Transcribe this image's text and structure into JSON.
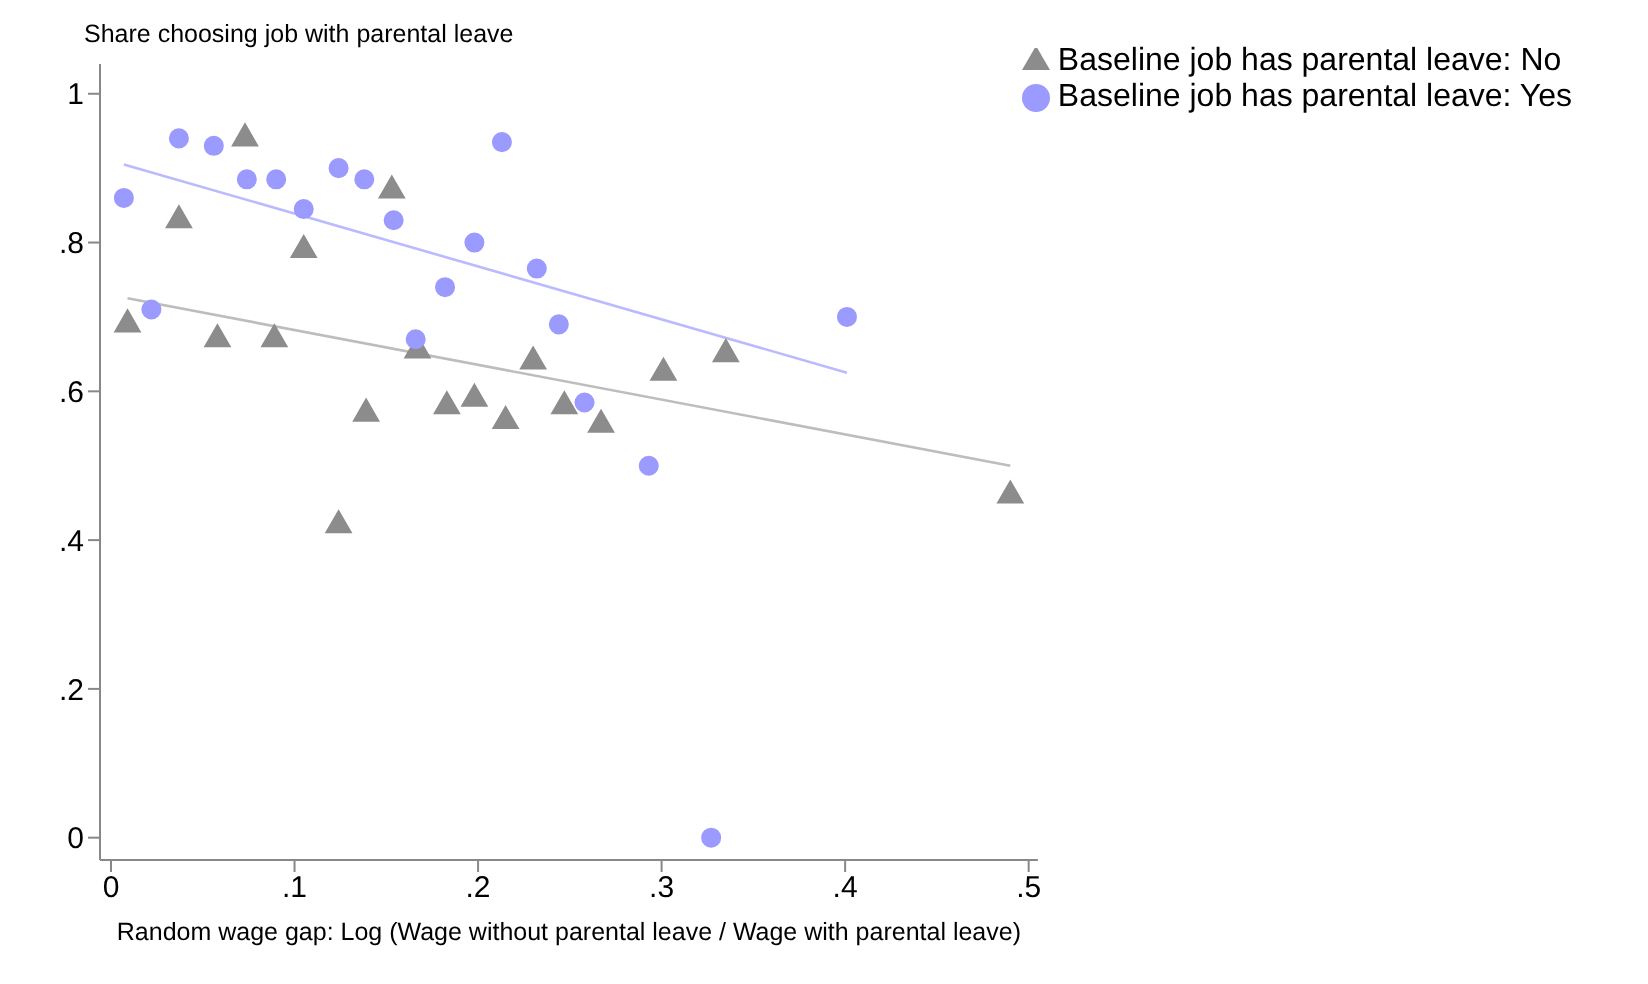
{
  "chart_data": {
    "type": "scatter",
    "ylabel": "Share choosing job with parental leave",
    "xlabel": "Random wage gap: Log (Wage without parental leave / Wage with parental leave)",
    "xlim": [
      -0.006,
      0.505
    ],
    "ylim": [
      -0.03,
      1.04
    ],
    "xticks": [
      0,
      {
        "value": 0.1,
        "label": ".1"
      },
      {
        "value": 0.2,
        "label": ".2"
      },
      {
        "value": 0.3,
        "label": ".3"
      },
      {
        "value": 0.4,
        "label": ".4"
      },
      {
        "value": 0.5,
        "label": ".5"
      }
    ],
    "yticks": [
      0,
      {
        "value": 0.2,
        "label": ".2"
      },
      {
        "value": 0.4,
        "label": ".4"
      },
      {
        "value": 0.6,
        "label": ".6"
      },
      {
        "value": 0.8,
        "label": ".8"
      },
      1
    ],
    "grid": false,
    "legend": "top right",
    "series": [
      {
        "name": "Baseline job has parental leave: No",
        "color": "#8c8c8c",
        "marker": "triangle",
        "x": [
          0.009,
          0.037,
          0.058,
          0.073,
          0.089,
          0.105,
          0.124,
          0.139,
          0.153,
          0.167,
          0.183,
          0.198,
          0.215,
          0.23,
          0.247,
          0.267,
          0.301,
          0.335,
          0.49
        ],
        "values": [
          0.69,
          0.83,
          0.67,
          0.94,
          0.67,
          0.79,
          0.42,
          0.57,
          0.87,
          0.655,
          0.58,
          0.59,
          0.56,
          0.64,
          0.58,
          0.555,
          0.625,
          0.65,
          0.46
        ]
      },
      {
        "name": "Baseline job has parental leave: Yes",
        "color": "#9a9aff",
        "marker": "circle",
        "x": [
          0.007,
          0.022,
          0.037,
          0.056,
          0.074,
          0.09,
          0.105,
          0.124,
          0.138,
          0.154,
          0.166,
          0.182,
          0.198,
          0.213,
          0.232,
          0.244,
          0.258,
          0.293,
          0.327,
          0.401
        ],
        "values": [
          0.86,
          0.71,
          0.94,
          0.93,
          0.885,
          0.885,
          0.845,
          0.9,
          0.885,
          0.83,
          0.67,
          0.74,
          0.8,
          0.935,
          0.765,
          0.69,
          0.585,
          0.5,
          0,
          0.7
        ]
      },
      {
        "type": "line",
        "color": "#bdbdbd",
        "x": [
          0.009,
          0.49
        ],
        "values": [
          0.725,
          0.5
        ]
      },
      {
        "type": "line",
        "color": "#babaff",
        "x": [
          0.007,
          0.401
        ],
        "values": [
          0.905,
          0.625
        ]
      }
    ]
  }
}
